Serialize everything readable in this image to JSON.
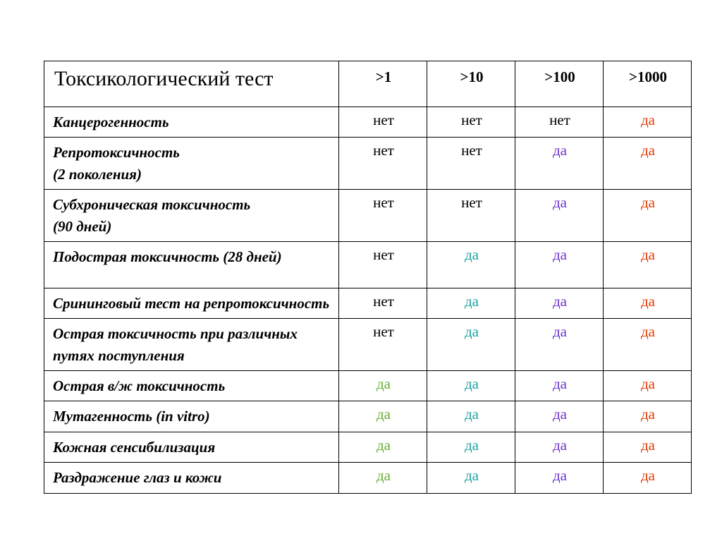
{
  "colors": {
    "no": "#000000",
    "yes1": "#66b032",
    "yes2": "#1aa3a3",
    "yes3": "#6a33cc",
    "yes4": "#e63900"
  },
  "header": {
    "title": "Токсикологический тест",
    "cols": [
      ">1",
      ">10",
      ">100",
      ">1000"
    ]
  },
  "words": {
    "no": "нет",
    "yes": "да"
  },
  "rows": [
    {
      "label": "Канцерогенность",
      "cells": [
        "no",
        "no",
        "no",
        "yes4"
      ],
      "tall": false
    },
    {
      "label": "Репротоксичность\n(2 поколения)",
      "cells": [
        "no",
        "no",
        "yes3",
        "yes4"
      ],
      "tall": false
    },
    {
      "label": "Субхроническая токсичность\n(90 дней)",
      "cells": [
        "no",
        "no",
        "yes3",
        "yes4"
      ],
      "tall": false
    },
    {
      "label": "Подострая токсичность (28 дней)",
      "cells": [
        "no",
        "yes2",
        "yes3",
        "yes4"
      ],
      "tall": true
    },
    {
      "label": "Срининговый тест на репротоксичность",
      "cells": [
        "no",
        "yes2",
        "yes3",
        "yes4"
      ],
      "tall": false
    },
    {
      "label": "Острая токсичность при различных\nпутях поступления",
      "cells": [
        "no",
        "yes2",
        "yes3",
        "yes4"
      ],
      "tall": false
    },
    {
      "label": "Острая в/ж токсичность",
      "cells": [
        "yes1",
        "yes2",
        "yes3",
        "yes4"
      ],
      "tall": false
    },
    {
      "label": "Мутагенность (in vitro)",
      "cells": [
        "yes1",
        "yes2",
        "yes3",
        "yes4"
      ],
      "tall": false
    },
    {
      "label": "Кожная сенсибилизация",
      "cells": [
        "yes1",
        "yes2",
        "yes3",
        "yes4"
      ],
      "tall": false
    },
    {
      "label": "Раздражение глаз и кожи",
      "cells": [
        "yes1",
        "yes2",
        "yes3",
        "yes4"
      ],
      "tall": false
    }
  ]
}
